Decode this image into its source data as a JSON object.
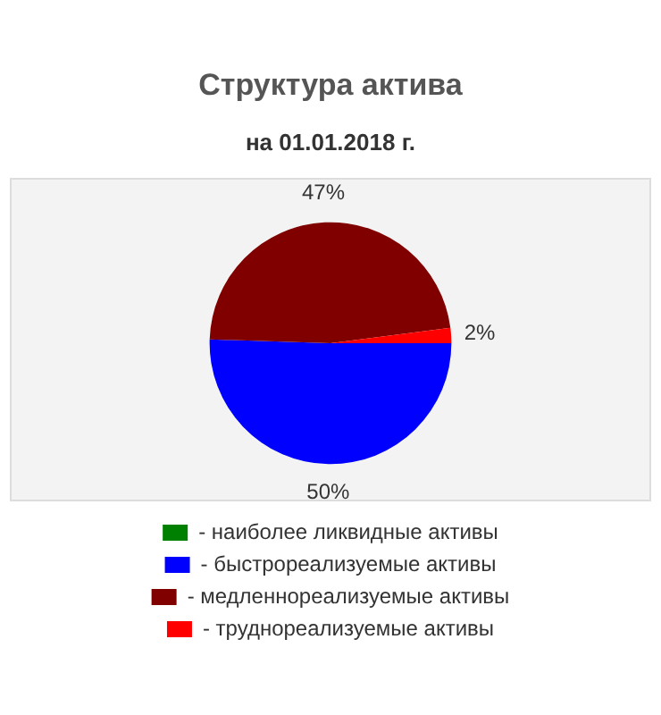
{
  "chart_data": {
    "type": "pie",
    "title": "Структура актива",
    "subtitle": "на 01.01.2018 г.",
    "categories": [
      "- наиболее ликвидные активы",
      "- быстрореализуемые активы",
      "- медленнореализуемые активы",
      "- труднореализуемые активы"
    ],
    "values": [
      0,
      50,
      47,
      2
    ],
    "colors": [
      "#008000",
      "#0000ff",
      "#800000",
      "#ff0000"
    ],
    "value_labels": [
      null,
      "50%",
      "47%",
      "2%"
    ],
    "legend": "bottom"
  }
}
